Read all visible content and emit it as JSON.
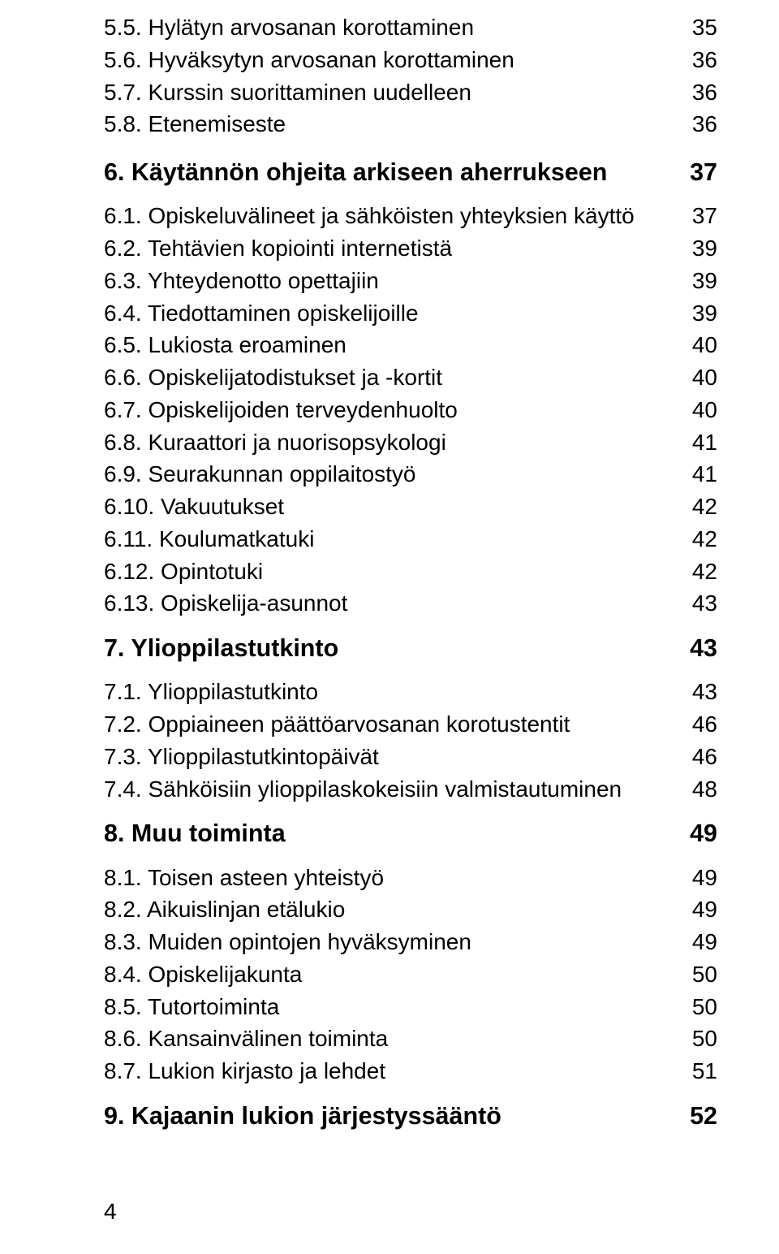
{
  "colors": {
    "text": "#000000",
    "background": "#ffffff",
    "leader": "#000000"
  },
  "typography": {
    "sub_fontsize_pt": 21,
    "chap_fontsize_pt": 23,
    "chap_fontweight": "bold",
    "font_family": "Arial"
  },
  "page_number": "4",
  "sections": [
    {
      "type": "subs",
      "items": [
        {
          "label": "5.5. Hylätyn arvosanan korottaminen",
          "page": "35"
        },
        {
          "label": "5.6. Hyväksytyn arvosanan korottaminen",
          "page": "36"
        },
        {
          "label": "5.7. Kurssin suorittaminen uudelleen",
          "page": "36"
        },
        {
          "label": "5.8. Etenemiseste",
          "page": "36"
        }
      ]
    },
    {
      "type": "chapter",
      "label": "6. Käytännön ohjeita arkiseen aherrukseen",
      "page": "37"
    },
    {
      "type": "subs",
      "items": [
        {
          "label": "6.1. Opiskeluvälineet ja sähköisten yhteyksien käyttö",
          "page": "37"
        },
        {
          "label": "6.2. Tehtävien kopiointi internetistä",
          "page": "39"
        },
        {
          "label": "6.3. Yhteydenotto opettajiin",
          "page": "39"
        },
        {
          "label": "6.4. Tiedottaminen opiskelijoille",
          "page": "39"
        },
        {
          "label": "6.5. Lukiosta eroaminen",
          "page": "40"
        },
        {
          "label": "6.6. Opiskelijatodistukset ja -kortit",
          "page": "40"
        },
        {
          "label": "6.7. Opiskelijoiden terveydenhuolto",
          "page": "40"
        },
        {
          "label": "6.8. Kuraattori ja nuorisopsykologi",
          "page": "41"
        },
        {
          "label": "6.9. Seurakunnan oppilaitostyö",
          "page": "41"
        },
        {
          "label": "6.10. Vakuutukset",
          "page": "42"
        },
        {
          "label": "6.11. Koulumatkatuki",
          "page": "42"
        },
        {
          "label": "6.12. Opintotuki",
          "page": "42"
        },
        {
          "label": "6.13. Opiskelija-asunnot",
          "page": "43"
        }
      ]
    },
    {
      "type": "chapter",
      "label": "7. Ylioppilastutkinto",
      "page": "43"
    },
    {
      "type": "subs",
      "items": [
        {
          "label": "7.1. Ylioppilastutkinto",
          "page": "43"
        },
        {
          "label": "7.2. Oppiaineen päättöarvosanan korotustentit",
          "page": "46"
        },
        {
          "label": "7.3. Ylioppilastutkintopäivät",
          "page": "46"
        },
        {
          "label": "7.4. Sähköisiin ylioppilaskokeisiin valmistautuminen",
          "page": "48"
        }
      ]
    },
    {
      "type": "chapter",
      "label": "8. Muu toiminta",
      "page": "49"
    },
    {
      "type": "subs",
      "items": [
        {
          "label": "8.1. Toisen asteen yhteistyö",
          "page": "49"
        },
        {
          "label": "8.2. Aikuislinjan etälukio",
          "page": "49"
        },
        {
          "label": "8.3. Muiden opintojen hyväksyminen",
          "page": "49"
        },
        {
          "label": "8.4. Opiskelijakunta",
          "page": "50"
        },
        {
          "label": "8.5. Tutortoiminta",
          "page": "50"
        },
        {
          "label": "8.6. Kansainvälinen toiminta",
          "page": "50"
        },
        {
          "label": "8.7. Lukion kirjasto ja lehdet",
          "page": "51"
        }
      ]
    },
    {
      "type": "chapter",
      "label": "9. Kajaanin lukion järjestyssääntö",
      "page": "52"
    }
  ]
}
